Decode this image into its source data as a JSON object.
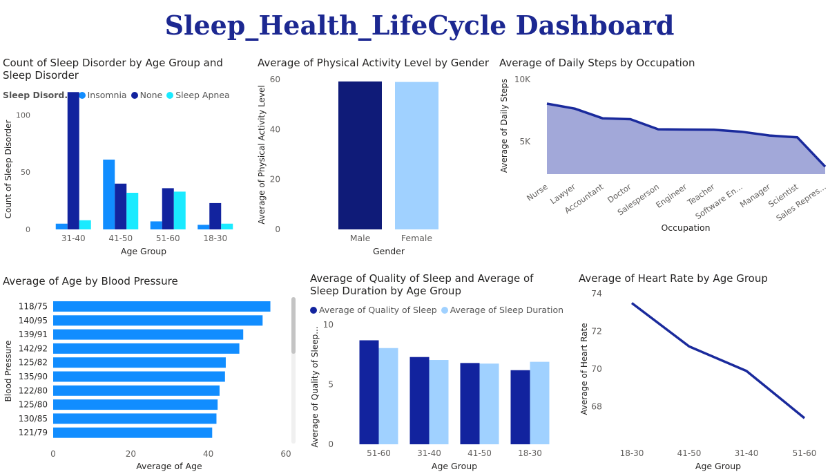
{
  "dashboard": {
    "title": "Sleep_Health_LifeCycle Dashboard"
  },
  "colors": {
    "title": "#1c2891",
    "insomnia": "#118dff",
    "none": "#12239e",
    "apnea": "#1aeaff",
    "male": "#0f1b78",
    "female": "#a0d1ff",
    "area_line": "#1a2a9c",
    "area_fill": "#a2a8d9",
    "bar_blue": "#118dff",
    "quality": "#12239e",
    "duration": "#a0d1ff",
    "heart_line": "#1a2a9c"
  },
  "chart_data": [
    {
      "type": "bar",
      "title": "Count of Sleep Disorder by Age Group and Sleep Disorder",
      "legend_title": "Sleep Disord...",
      "xlabel": "Age Group",
      "ylabel": "Count of Sleep Disorder",
      "categories": [
        "31-40",
        "41-50",
        "51-60",
        "18-30"
      ],
      "ylim": [
        0,
        125
      ],
      "yticks": [
        0,
        50,
        100
      ],
      "series": [
        {
          "name": "Insomnia",
          "values": [
            5,
            61,
            7,
            4
          ]
        },
        {
          "name": "None",
          "values": [
            120,
            40,
            36,
            23
          ]
        },
        {
          "name": "Sleep Apnea",
          "values": [
            8,
            32,
            33,
            5
          ]
        }
      ]
    },
    {
      "type": "bar",
      "title": "Average of Physical Activity Level by Gender",
      "xlabel": "Gender",
      "ylabel": "Average of Physical Activity Level",
      "categories": [
        "Male",
        "Female"
      ],
      "values": [
        59.2,
        59.0
      ],
      "ylim": [
        0,
        60
      ],
      "yticks": [
        0,
        20,
        40,
        60
      ]
    },
    {
      "type": "area",
      "title": "Average of Daily Steps by Occupation",
      "xlabel": "Occupation",
      "ylabel": "Average of Daily Steps",
      "categories": [
        "Nurse",
        "Lawyer",
        "Accountant",
        "Doctor",
        "Salesperson",
        "Engineer",
        "Teacher",
        "Software En...",
        "Manager",
        "Scientist",
        "Sales Repres..."
      ],
      "values": [
        8060,
        7660,
        6880,
        6810,
        6000,
        5980,
        5960,
        5800,
        5500,
        5350,
        3000
      ],
      "ylim": [
        2400,
        10000
      ],
      "yticks": [
        5000,
        10000
      ],
      "ytick_labels": [
        "5K",
        "10K"
      ]
    },
    {
      "type": "bar",
      "orientation": "horizontal",
      "title": "Average of Age by Blood Pressure",
      "xlabel": "Average of Age",
      "ylabel": "Blood Pressure",
      "categories": [
        "118/75",
        "140/95",
        "139/91",
        "142/92",
        "125/82",
        "135/90",
        "122/80",
        "125/80",
        "130/85",
        "121/79"
      ],
      "values": [
        56,
        54,
        49,
        48,
        44.5,
        44.3,
        42.9,
        42.4,
        42.1,
        41
      ],
      "xlim": [
        0,
        60
      ],
      "xticks": [
        0,
        20,
        40,
        60
      ]
    },
    {
      "type": "bar",
      "title": "Average of Quality of Sleep and Average of Sleep Duration by Age Group",
      "xlabel": "Age Group",
      "ylabel": "Average of Quality of Sleep...",
      "categories": [
        "51-60",
        "31-40",
        "41-50",
        "18-30"
      ],
      "ylim": [
        0,
        10
      ],
      "yticks": [
        0,
        5,
        10
      ],
      "series": [
        {
          "name": "Average of Quality of Sleep",
          "values": [
            8.7,
            7.3,
            6.8,
            6.2
          ]
        },
        {
          "name": "Average of Sleep Duration",
          "values": [
            8.05,
            7.05,
            6.75,
            6.9
          ]
        }
      ]
    },
    {
      "type": "line",
      "title": "Average of Heart Rate by Age Group",
      "xlabel": "Age Group",
      "ylabel": "Average of Heart Rate",
      "categories": [
        "18-30",
        "41-50",
        "31-40",
        "51-60"
      ],
      "values": [
        73.5,
        71.2,
        69.9,
        67.4
      ],
      "ylim": [
        67,
        74
      ],
      "yticks": [
        68,
        70,
        72,
        74
      ]
    }
  ]
}
